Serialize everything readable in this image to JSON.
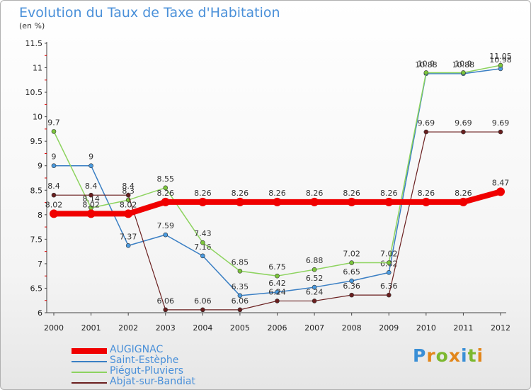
{
  "title": "Evolution du Taux de Taxe d'Habitation",
  "unit_label": "(en %)",
  "brand": {
    "letters": [
      "P",
      "r",
      "o",
      "x",
      "i",
      "t",
      "i"
    ],
    "colors": [
      "#3a8fd6",
      "#e2861a",
      "#7cb82f",
      "#e2861a",
      "#3a8fd6",
      "#7cb82f",
      "#e2861a"
    ]
  },
  "chart_data": {
    "type": "line",
    "title": "Evolution du Taux de Taxe d'Habitation",
    "ylabel": "(en %)",
    "x": [
      2000,
      2001,
      2002,
      2003,
      2004,
      2005,
      2006,
      2007,
      2008,
      2009,
      2010,
      2011,
      2012
    ],
    "x_tick_labels": [
      "2000",
      "2001",
      "2002",
      "2003",
      "2004",
      "2005",
      "2006",
      "2007",
      "2008",
      "2009",
      "2010",
      "2011",
      "2012"
    ],
    "ylim": [
      6,
      11.5
    ],
    "y_ticks": [
      6,
      6.5,
      7,
      7.5,
      8,
      8.5,
      9,
      9.5,
      10,
      10.5,
      11,
      11.5
    ],
    "y_tick_labels": [
      "6",
      "6.5",
      "7",
      "7.5",
      "8",
      "8.5",
      "9",
      "9.5",
      "10",
      "10.5",
      "11",
      "11.5"
    ],
    "grid": false,
    "legend_position": "bottom-left",
    "series": [
      {
        "name": "Saint-Estèphe",
        "color": "#3a7fc4",
        "fill": "#4b9be0",
        "width": 1.5,
        "marker": 3,
        "values": [
          9,
          9,
          7.37,
          7.59,
          7.16,
          6.35,
          6.42,
          6.52,
          6.65,
          6.82,
          10.88,
          10.88,
          10.98
        ],
        "labels": [
          "9",
          "9",
          "7.37",
          "7.59",
          "7.16",
          "6.35",
          "6.42",
          "6.52",
          "6.65",
          "6.82",
          "10.88",
          "10.88",
          "10.98"
        ]
      },
      {
        "name": "Piégut-Pluviers",
        "color": "#8dd35f",
        "fill": "#7cc63c",
        "width": 1.5,
        "marker": 3,
        "values": [
          9.7,
          8.14,
          8.3,
          8.55,
          7.43,
          6.85,
          6.75,
          6.88,
          7.02,
          7.02,
          10.9,
          10.9,
          11.05
        ],
        "labels": [
          "9.7",
          "8.14",
          "8.3",
          "8.55",
          "7.43",
          "6.85",
          "6.75",
          "6.88",
          "7.02",
          "7.02",
          "10.9",
          "10.9",
          "11.05"
        ]
      },
      {
        "name": "Abjat-sur-Bandiat",
        "color": "#6a1f1f",
        "fill": "#6a1f1f",
        "width": 1.2,
        "marker": 3,
        "values": [
          8.4,
          8.4,
          8.4,
          6.06,
          6.06,
          6.06,
          6.24,
          6.24,
          6.36,
          6.36,
          9.69,
          9.69,
          9.69
        ],
        "labels": [
          "8.4",
          "8.4",
          "8.4",
          "6.06",
          "6.06",
          "6.06",
          "6.24",
          "6.24",
          "6.36",
          "6.36",
          "9.69",
          "9.69",
          "9.69"
        ]
      },
      {
        "name": "AUGIGNAC",
        "color": "#f00000",
        "fill": "#f00000",
        "width": 8,
        "marker": 6,
        "values": [
          8.02,
          8.02,
          8.02,
          8.26,
          8.26,
          8.26,
          8.26,
          8.26,
          8.26,
          8.26,
          8.26,
          8.26,
          8.47
        ],
        "labels": [
          "8.02",
          "8.02",
          "8.02",
          "8.26",
          "8.26",
          "8.26",
          "8.26",
          "8.26",
          "8.26",
          "8.26",
          "8.26",
          "8.26",
          "8.47"
        ]
      }
    ],
    "legend_order": [
      "AUGIGNAC",
      "Saint-Estèphe",
      "Piégut-Pluviers",
      "Abjat-sur-Bandiat"
    ]
  }
}
